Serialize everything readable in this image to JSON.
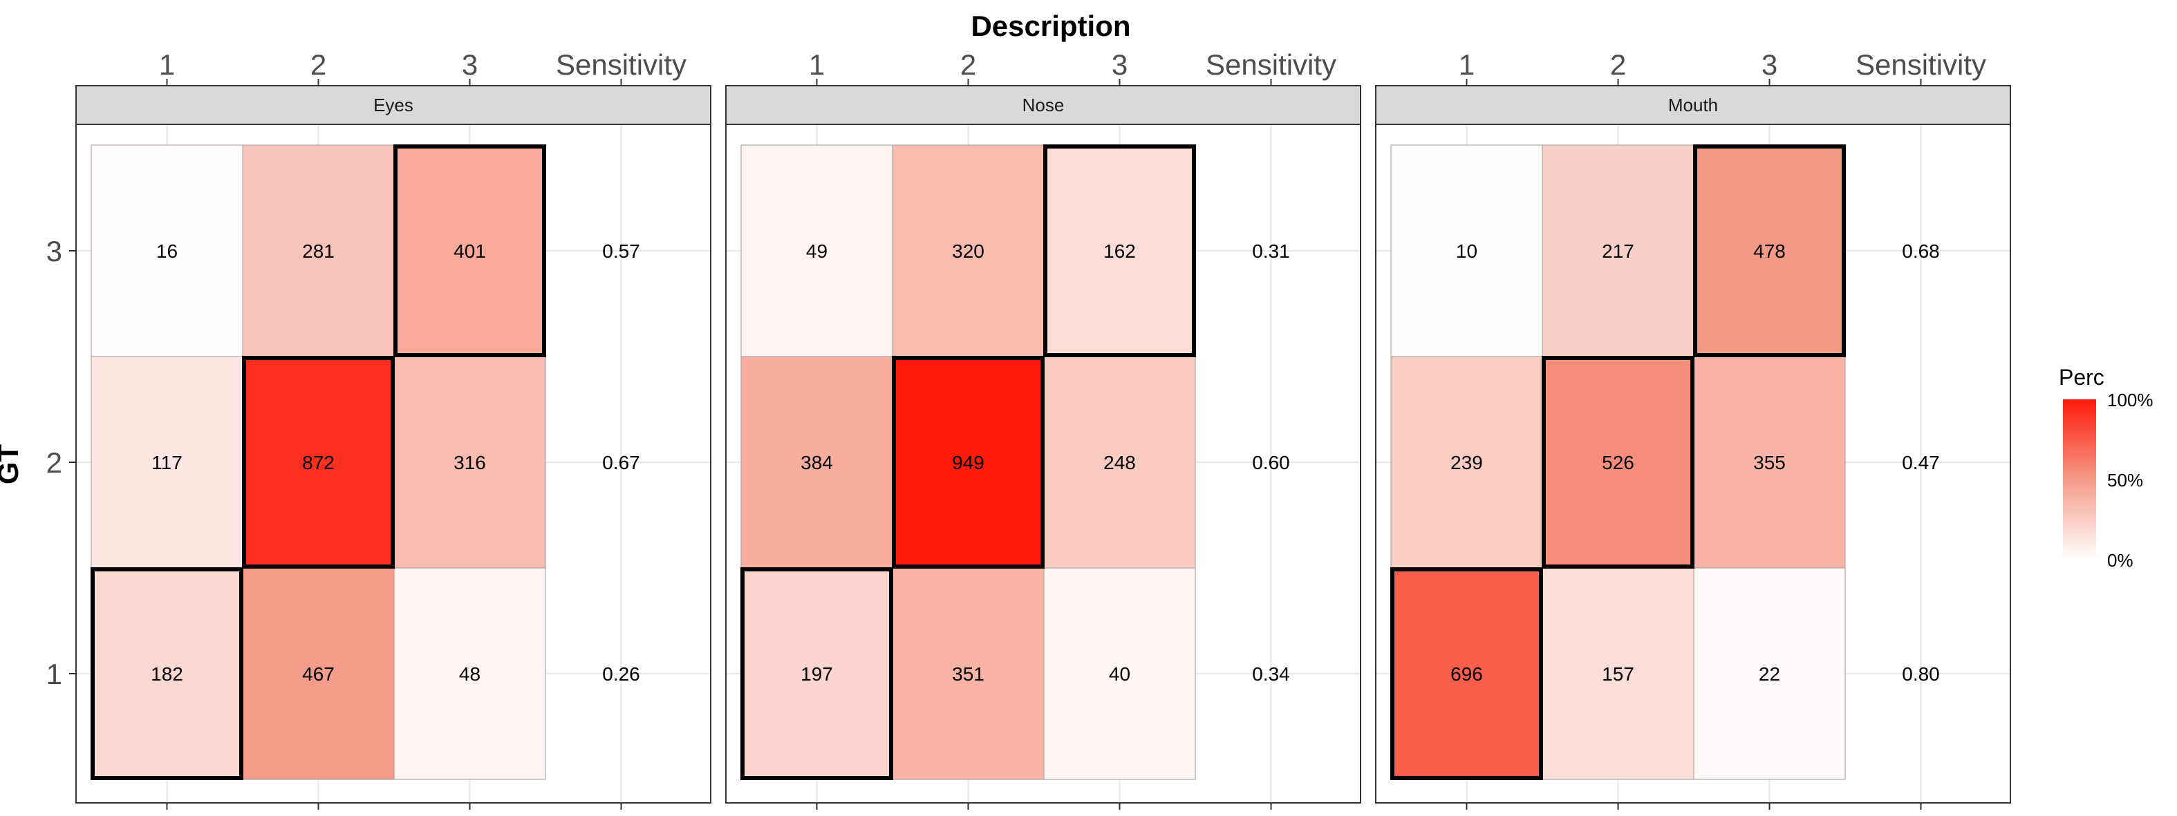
{
  "chart_data": {
    "type": "heatmap",
    "xlabel": "Description",
    "ylabel": "GT",
    "x_ticks": [
      "1",
      "2",
      "3",
      "Sensitivity"
    ],
    "y_ticks": [
      "1",
      "2",
      "3"
    ],
    "legend": {
      "title": "Perc",
      "labels": [
        "0%",
        "50%",
        "100%"
      ],
      "low_color": "#ffffff",
      "high_color": "#ff1a0a",
      "placement": "right"
    },
    "highlight_color": "#000000",
    "panels": [
      {
        "name": "Eyes",
        "rows": [
          {
            "gt": "3",
            "values": [
              16,
              281,
              401
            ],
            "sensitivity": "0.57"
          },
          {
            "gt": "2",
            "values": [
              117,
              872,
              316
            ],
            "sensitivity": "0.67"
          },
          {
            "gt": "1",
            "values": [
              182,
              467,
              48
            ],
            "sensitivity": "0.26"
          }
        ]
      },
      {
        "name": "Nose",
        "rows": [
          {
            "gt": "3",
            "values": [
              49,
              320,
              162
            ],
            "sensitivity": "0.31"
          },
          {
            "gt": "2",
            "values": [
              384,
              949,
              248
            ],
            "sensitivity": "0.60"
          },
          {
            "gt": "1",
            "values": [
              197,
              351,
              40
            ],
            "sensitivity": "0.34"
          }
        ]
      },
      {
        "name": "Mouth",
        "rows": [
          {
            "gt": "3",
            "values": [
              10,
              217,
              478
            ],
            "sensitivity": "0.68"
          },
          {
            "gt": "2",
            "values": [
              239,
              526,
              355
            ],
            "sensitivity": "0.47"
          },
          {
            "gt": "1",
            "values": [
              696,
              157,
              22
            ],
            "sensitivity": "0.80"
          }
        ]
      }
    ]
  }
}
